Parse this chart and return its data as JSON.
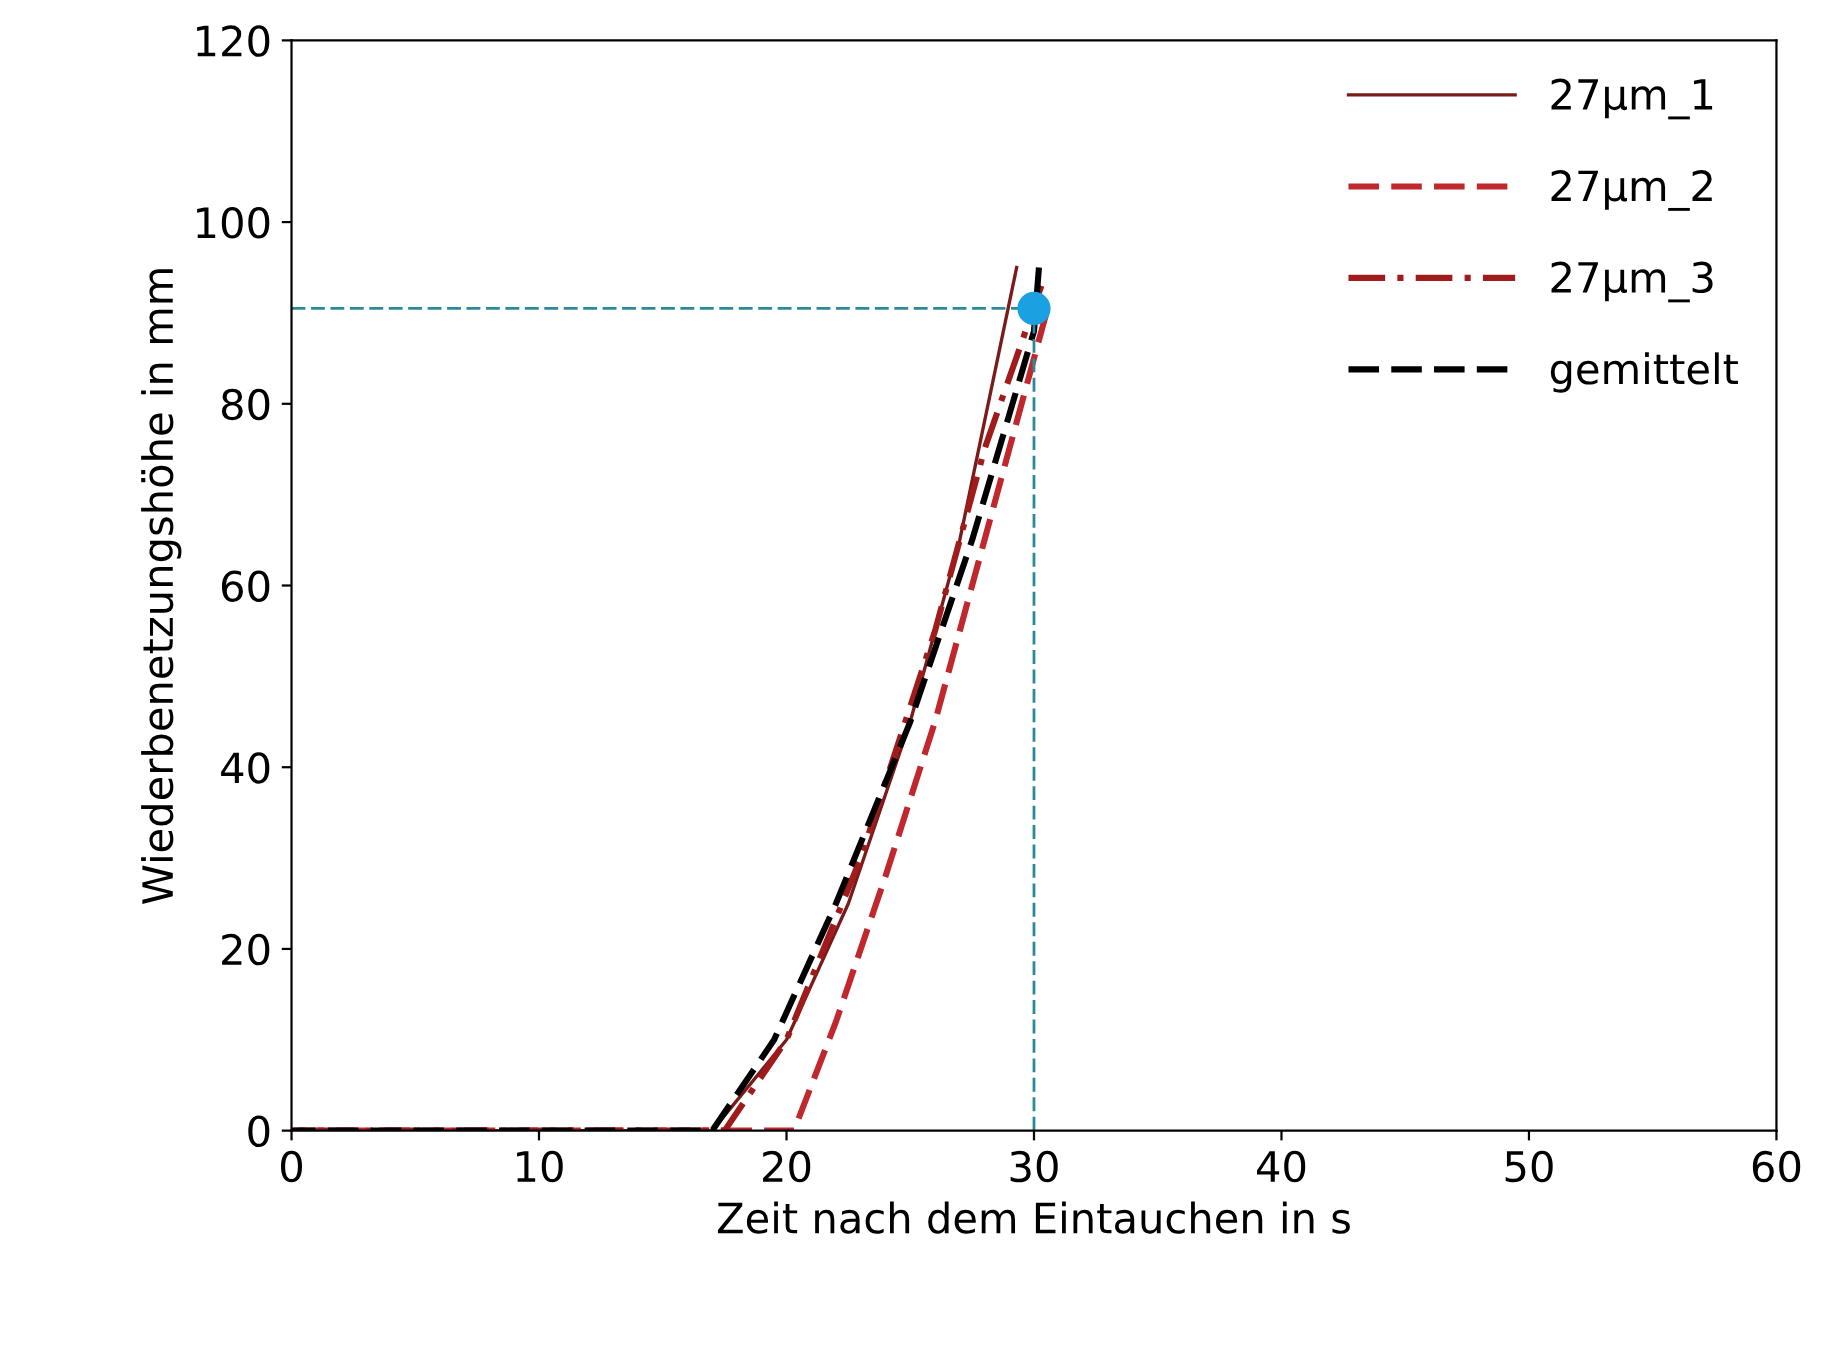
{
  "chart_data": {
    "type": "line",
    "xlabel": "Zeit nach dem Eintauchen in s",
    "ylabel": "Wiederbenetzungshöhe in mm",
    "xlim": [
      0,
      60
    ],
    "xticks": [
      0,
      10,
      20,
      30,
      40,
      50,
      60
    ],
    "ylim": [
      0,
      120
    ],
    "yticks": [
      0,
      20,
      40,
      60,
      80,
      100,
      120
    ],
    "grid": false,
    "legend": "top right",
    "series": [
      {
        "name": "27µm_1",
        "color": "#7b1a1a",
        "line_style": "solid",
        "x": [
          0,
          17,
          20,
          22.5,
          25,
          27,
          29.3
        ],
        "values": [
          0,
          0,
          10,
          25,
          45,
          65,
          95
        ]
      },
      {
        "name": "27µm_2",
        "color": "#c0282d",
        "line_style": "dashed",
        "x": [
          0,
          20.3,
          22,
          24,
          26,
          28,
          30.5
        ],
        "values": [
          0,
          0,
          12,
          28,
          45,
          65,
          90
        ]
      },
      {
        "name": "27µm_3",
        "color": "#a01c1c",
        "line_style": "dashdot",
        "x": [
          0,
          17.5,
          20,
          23,
          26,
          28,
          30.3
        ],
        "values": [
          0,
          0,
          10,
          30,
          55,
          75,
          93
        ]
      },
      {
        "name": "gemittelt",
        "color": "#000000",
        "line_style": "dashed",
        "x": [
          0,
          17,
          19.5,
          22,
          25,
          27.5,
          30,
          30.2
        ],
        "values": [
          0,
          0,
          10,
          25,
          45,
          65,
          88,
          95
        ]
      },
      {
        "type": "scatter",
        "color": "#1ba1e2",
        "marker": "circle",
        "x": [
          30
        ],
        "values": [
          90.5
        ]
      }
    ],
    "ref_lines": [
      {
        "axis": "x",
        "value": 30,
        "color": "#2a8a9a",
        "line_style": "dashed"
      },
      {
        "axis": "y",
        "value": 90.5,
        "color": "#2a8a9a",
        "line_style": "dashed"
      }
    ]
  }
}
